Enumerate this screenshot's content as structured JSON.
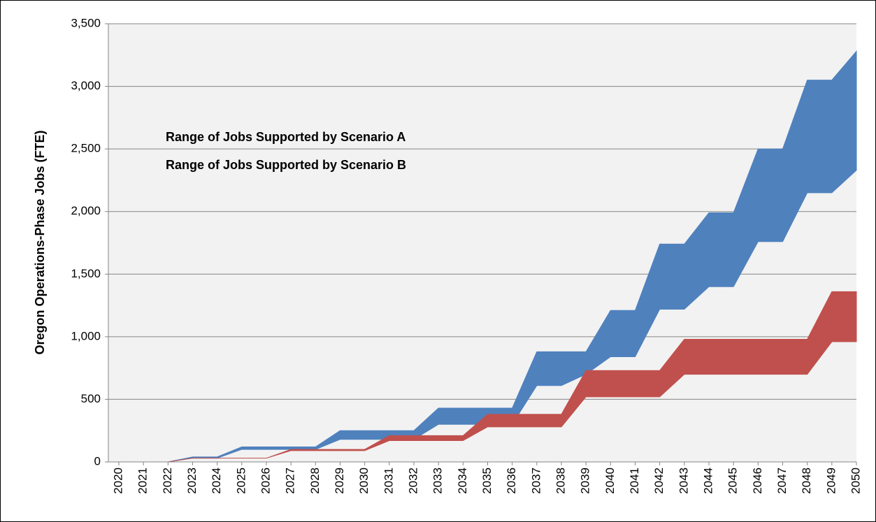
{
  "chart_data": {
    "type": "range-area",
    "y_label": "Oregon Operations-Phase Jobs (FTE)",
    "x": [
      2020,
      2021,
      2022,
      2023,
      2024,
      2025,
      2026,
      2027,
      2028,
      2029,
      2030,
      2031,
      2032,
      2033,
      2034,
      2035,
      2036,
      2037,
      2038,
      2039,
      2040,
      2041,
      2042,
      2043,
      2044,
      2045,
      2046,
      2047,
      2048,
      2049,
      2050
    ],
    "xlim": [
      2020,
      2050
    ],
    "ylim": [
      0,
      3500
    ],
    "yticks": [
      0,
      500,
      {
        "value": 1000,
        "label": "1,000"
      },
      {
        "value": 1500,
        "label": "1,500"
      },
      {
        "value": 2000,
        "label": "2,000"
      },
      {
        "value": 2500,
        "label": "2,500"
      },
      {
        "value": 3000,
        "label": "3,000"
      },
      {
        "value": 3500,
        "label": "3,500"
      }
    ],
    "grid": true,
    "series": [
      {
        "name": "Range of Jobs Supported by Scenario A",
        "color": "#4f81bd",
        "low": [
          0,
          0,
          0,
          30,
          30,
          100,
          100,
          100,
          100,
          180,
          180,
          180,
          180,
          300,
          300,
          300,
          300,
          610,
          610,
          700,
          840,
          840,
          1220,
          1220,
          1400,
          1400,
          1760,
          1760,
          2150,
          2150,
          2330
        ],
        "high": [
          0,
          0,
          0,
          40,
          40,
          120,
          120,
          120,
          120,
          250,
          250,
          250,
          250,
          430,
          430,
          430,
          430,
          880,
          880,
          880,
          1210,
          1210,
          1740,
          1740,
          1990,
          1990,
          2500,
          2500,
          3050,
          3050,
          3280
        ]
      },
      {
        "name": "Range of Jobs Supported by Scenario B",
        "color": "#c0504d",
        "low": [
          0,
          0,
          0,
          30,
          30,
          30,
          30,
          90,
          90,
          90,
          90,
          170,
          170,
          170,
          170,
          280,
          280,
          280,
          280,
          520,
          520,
          520,
          520,
          700,
          700,
          700,
          700,
          700,
          700,
          960,
          960
        ],
        "high": [
          0,
          0,
          0,
          30,
          30,
          30,
          30,
          100,
          100,
          100,
          100,
          210,
          210,
          210,
          210,
          380,
          380,
          380,
          380,
          730,
          730,
          730,
          730,
          980,
          980,
          980,
          980,
          980,
          980,
          1360,
          1360
        ]
      }
    ]
  }
}
